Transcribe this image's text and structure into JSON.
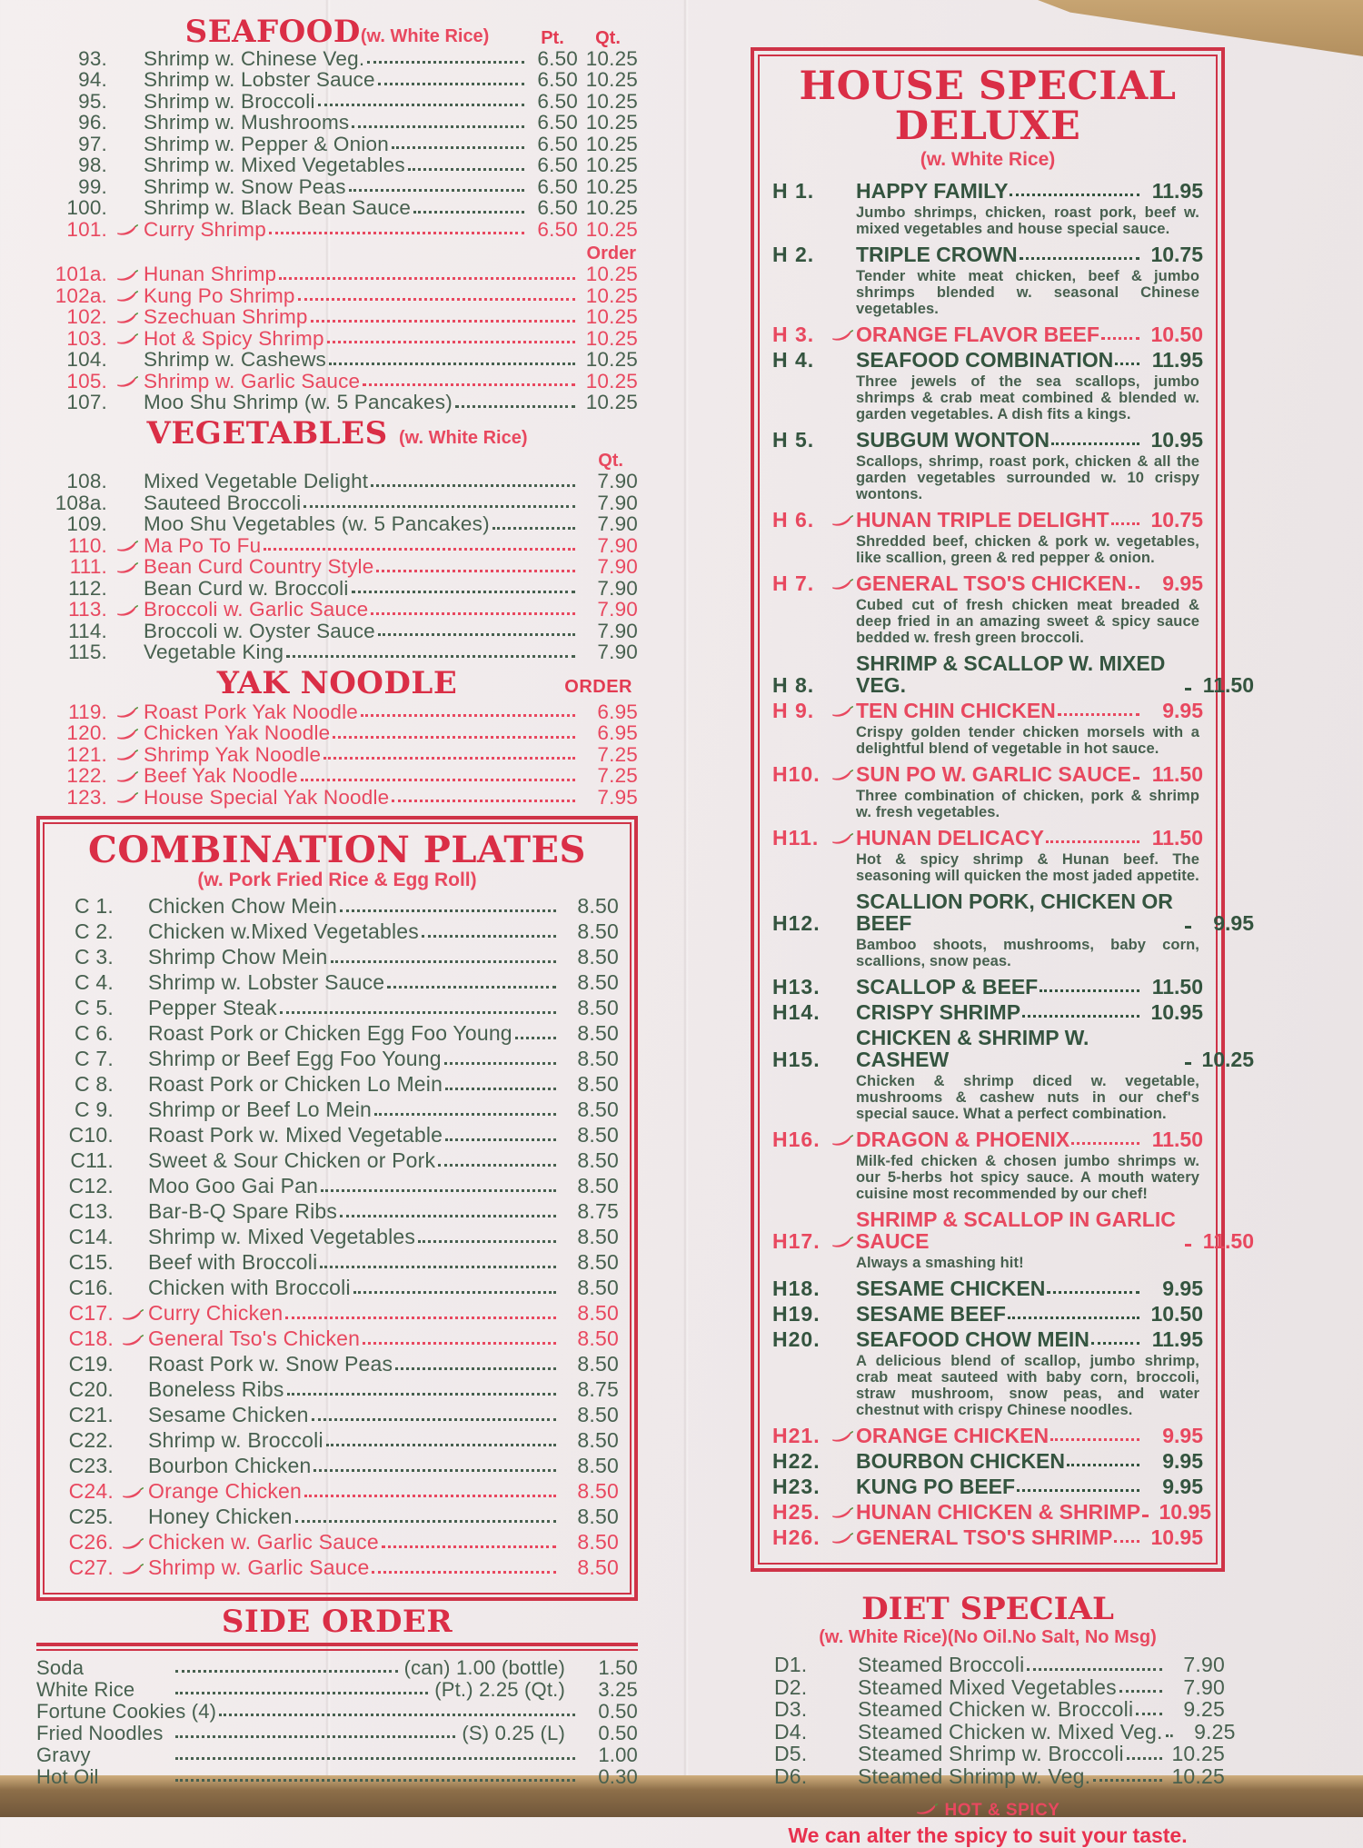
{
  "colors": {
    "paper": "#f1ebec",
    "item_green": "#47604f",
    "item_red": "#e8485f",
    "header_red": "#da2e46",
    "border_red": "#cf3347",
    "wood": "#b3905f"
  },
  "left": {
    "seafood": {
      "title": "SEAFOOD",
      "note": "(w. White Rice)",
      "pt_label": "Pt.",
      "qt_label": "Qt.",
      "order_label": "Order",
      "items": [
        {
          "num": "93.",
          "name": "Shrimp w. Chinese Veg.",
          "pt": "6.50",
          "qt": "10.25",
          "red": false,
          "spicy": false
        },
        {
          "num": "94.",
          "name": "Shrimp w. Lobster Sauce",
          "pt": "6.50",
          "qt": "10.25",
          "red": false,
          "spicy": false
        },
        {
          "num": "95.",
          "name": "Shrimp w. Broccoli",
          "pt": "6.50",
          "qt": "10.25",
          "red": false,
          "spicy": false
        },
        {
          "num": "96.",
          "name": "Shrimp w. Mushrooms",
          "pt": "6.50",
          "qt": "10.25",
          "red": false,
          "spicy": false
        },
        {
          "num": "97.",
          "name": "Shrimp w. Pepper & Onion",
          "pt": "6.50",
          "qt": "10.25",
          "red": false,
          "spicy": false
        },
        {
          "num": "98.",
          "name": "Shrimp w. Mixed Vegetables",
          "pt": "6.50",
          "qt": "10.25",
          "red": false,
          "spicy": false
        },
        {
          "num": "99.",
          "name": "Shrimp w. Snow Peas",
          "pt": "6.50",
          "qt": "10.25",
          "red": false,
          "spicy": false
        },
        {
          "num": "100.",
          "name": "Shrimp w. Black Bean Sauce",
          "pt": "6.50",
          "qt": "10.25",
          "red": false,
          "spicy": false
        },
        {
          "num": "101.",
          "name": "Curry Shrimp",
          "pt": "6.50",
          "qt": "10.25",
          "red": true,
          "spicy": true
        }
      ],
      "items2": [
        {
          "num": "101a.",
          "name": "Hunan Shrimp",
          "price": "10.25",
          "red": true,
          "spicy": true
        },
        {
          "num": "102a.",
          "name": "Kung Po Shrimp",
          "price": "10.25",
          "red": true,
          "spicy": true
        },
        {
          "num": "102.",
          "name": "Szechuan Shrimp",
          "price": "10.25",
          "red": true,
          "spicy": true
        },
        {
          "num": "103.",
          "name": "Hot & Spicy Shrimp",
          "price": "10.25",
          "red": true,
          "spicy": true
        },
        {
          "num": "104.",
          "name": "Shrimp w. Cashews",
          "price": "10.25",
          "red": false,
          "spicy": false
        },
        {
          "num": "105.",
          "name": "Shrimp w. Garlic Sauce",
          "price": "10.25",
          "red": true,
          "spicy": true
        },
        {
          "num": "107.",
          "name": "Moo Shu Shrimp (w. 5 Pancakes)",
          "price": "10.25",
          "red": false,
          "spicy": false
        }
      ]
    },
    "vegetables": {
      "title": "VEGETABLES",
      "note": "(w. White Rice)",
      "qt_label": "Qt.",
      "items": [
        {
          "num": "108.",
          "name": "Mixed Vegetable Delight",
          "price": "7.90",
          "red": false,
          "spicy": false
        },
        {
          "num": "108a.",
          "name": "Sauteed Broccoli",
          "price": "7.90",
          "red": false,
          "spicy": false
        },
        {
          "num": "109.",
          "name": "Moo Shu Vegetables (w. 5 Pancakes)",
          "price": "7.90",
          "red": false,
          "spicy": false
        },
        {
          "num": "110.",
          "name": "Ma Po To Fu",
          "price": "7.90",
          "red": true,
          "spicy": true
        },
        {
          "num": "111.",
          "name": "Bean Curd Country Style",
          "price": "7.90",
          "red": true,
          "spicy": true
        },
        {
          "num": "112.",
          "name": "Bean Curd w. Broccoli",
          "price": "7.90",
          "red": false,
          "spicy": false
        },
        {
          "num": "113.",
          "name": "Broccoli w. Garlic Sauce",
          "price": "7.90",
          "red": true,
          "spicy": true
        },
        {
          "num": "114.",
          "name": "Broccoli w. Oyster Sauce",
          "price": "7.90",
          "red": false,
          "spicy": false
        },
        {
          "num": "115.",
          "name": "Vegetable King",
          "price": "7.90",
          "red": false,
          "spicy": false
        }
      ]
    },
    "yak": {
      "title": "YAK NOODLE",
      "order_label": "ORDER",
      "items": [
        {
          "num": "119.",
          "name": "Roast Pork Yak Noodle",
          "price": "6.95",
          "red": true,
          "spicy": true
        },
        {
          "num": "120.",
          "name": "Chicken Yak Noodle",
          "price": "6.95",
          "red": true,
          "spicy": true
        },
        {
          "num": "121.",
          "name": "Shrimp Yak Noodle",
          "price": "7.25",
          "red": true,
          "spicy": true
        },
        {
          "num": "122.",
          "name": "Beef Yak Noodle",
          "price": "7.25",
          "red": true,
          "spicy": true
        },
        {
          "num": "123.",
          "name": "House Special Yak Noodle",
          "price": "7.95",
          "red": true,
          "spicy": true
        }
      ]
    },
    "combo": {
      "title": "COMBINATION PLATES",
      "note": "(w. Pork Fried Rice & Egg Roll)",
      "items": [
        {
          "num": "C 1.",
          "name": "Chicken Chow Mein",
          "price": "8.50",
          "red": false,
          "spicy": false
        },
        {
          "num": "C 2.",
          "name": "Chicken w.Mixed Vegetables",
          "price": "8.50",
          "red": false,
          "spicy": false
        },
        {
          "num": "C 3.",
          "name": "Shrimp Chow Mein",
          "price": "8.50",
          "red": false,
          "spicy": false
        },
        {
          "num": "C 4.",
          "name": "Shrimp w. Lobster Sauce",
          "price": "8.50",
          "red": false,
          "spicy": false
        },
        {
          "num": "C 5.",
          "name": "Pepper Steak",
          "price": "8.50",
          "red": false,
          "spicy": false
        },
        {
          "num": "C 6.",
          "name": "Roast Pork or Chicken Egg Foo Young",
          "price": "8.50",
          "red": false,
          "spicy": false
        },
        {
          "num": "C 7.",
          "name": "Shrimp or Beef Egg Foo Young",
          "price": "8.50",
          "red": false,
          "spicy": false
        },
        {
          "num": "C 8.",
          "name": "Roast Pork or Chicken Lo Mein",
          "price": "8.50",
          "red": false,
          "spicy": false
        },
        {
          "num": "C 9.",
          "name": "Shrimp or Beef Lo Mein",
          "price": "8.50",
          "red": false,
          "spicy": false
        },
        {
          "num": "C10.",
          "name": "Roast Pork w. Mixed Vegetable",
          "price": "8.50",
          "red": false,
          "spicy": false
        },
        {
          "num": "C11.",
          "name": "Sweet & Sour Chicken or Pork",
          "price": "8.50",
          "red": false,
          "spicy": false
        },
        {
          "num": "C12.",
          "name": "Moo Goo Gai Pan",
          "price": "8.50",
          "red": false,
          "spicy": false
        },
        {
          "num": "C13.",
          "name": "Bar-B-Q Spare Ribs",
          "price": "8.75",
          "red": false,
          "spicy": false
        },
        {
          "num": "C14.",
          "name": "Shrimp w. Mixed Vegetables",
          "price": "8.50",
          "red": false,
          "spicy": false
        },
        {
          "num": "C15.",
          "name": "Beef with Broccoli",
          "price": "8.50",
          "red": false,
          "spicy": false
        },
        {
          "num": "C16.",
          "name": "Chicken with Broccoli",
          "price": "8.50",
          "red": false,
          "spicy": false
        },
        {
          "num": "C17.",
          "name": "Curry Chicken",
          "price": "8.50",
          "red": true,
          "spicy": true
        },
        {
          "num": "C18.",
          "name": "General Tso's Chicken",
          "price": "8.50",
          "red": true,
          "spicy": true
        },
        {
          "num": "C19.",
          "name": "Roast Pork w. Snow Peas",
          "price": "8.50",
          "red": false,
          "spicy": false
        },
        {
          "num": "C20.",
          "name": "Boneless Ribs",
          "price": "8.75",
          "red": false,
          "spicy": false
        },
        {
          "num": "C21.",
          "name": "Sesame Chicken",
          "price": "8.50",
          "red": false,
          "spicy": false
        },
        {
          "num": "C22.",
          "name": "Shrimp w. Broccoli",
          "price": "8.50",
          "red": false,
          "spicy": false
        },
        {
          "num": "C23.",
          "name": "Bourbon Chicken",
          "price": "8.50",
          "red": false,
          "spicy": false
        },
        {
          "num": "C24.",
          "name": "Orange Chicken",
          "price": "8.50",
          "red": true,
          "spicy": true
        },
        {
          "num": "C25.",
          "name": "Honey Chicken",
          "price": "8.50",
          "red": false,
          "spicy": false
        },
        {
          "num": "C26.",
          "name": "Chicken w. Garlic Sauce",
          "price": "8.50",
          "red": true,
          "spicy": true
        },
        {
          "num": "C27.",
          "name": "Shrimp w. Garlic Sauce",
          "price": "8.50",
          "red": true,
          "spicy": true
        }
      ]
    },
    "side": {
      "title": "SIDE ORDER",
      "items": [
        {
          "name": "Soda",
          "mid": "(can) 1.00  (bottle)",
          "price": "1.50"
        },
        {
          "name": "White Rice",
          "mid": "(Pt.) 2.25  (Qt.)",
          "price": "3.25"
        },
        {
          "name": "Fortune Cookies (4)",
          "mid": "",
          "price": "0.50"
        },
        {
          "name": "Fried Noodles",
          "mid": "(S) 0.25  (L)",
          "price": "0.50"
        },
        {
          "name": "Gravy",
          "mid": "",
          "price": "1.00"
        },
        {
          "name": "Hot Oil",
          "mid": "",
          "price": "0.30"
        }
      ]
    }
  },
  "right": {
    "house": {
      "title": "HOUSE SPECIAL DELUXE",
      "note": "(w. White Rice)",
      "items": [
        {
          "num": "H 1.",
          "name": "HAPPY FAMILY",
          "price": "11.95",
          "red": false,
          "spicy": false,
          "desc": "Jumbo shrimps, chicken, roast pork, beef w. mixed vegetables and house special sauce."
        },
        {
          "num": "H 2.",
          "name": "TRIPLE CROWN",
          "price": "10.75",
          "red": false,
          "spicy": false,
          "desc": "Tender white meat chicken, beef & jumbo shrimps blended w. seasonal Chinese vegetables."
        },
        {
          "num": "H 3.",
          "name": "ORANGE FLAVOR BEEF",
          "price": "10.50",
          "red": true,
          "spicy": true,
          "desc": ""
        },
        {
          "num": "H 4.",
          "name": "SEAFOOD COMBINATION",
          "price": "11.95",
          "red": false,
          "spicy": false,
          "desc": "Three jewels of the sea scallops, jumbo shrimps & crab meat combined & blended w. garden vegetables. A dish fits a kings."
        },
        {
          "num": "H 5.",
          "name": "SUBGUM WONTON",
          "price": "10.95",
          "red": false,
          "spicy": false,
          "desc": "Scallops, shrimp, roast pork, chicken & all the garden vegetables surrounded w. 10 crispy wontons."
        },
        {
          "num": "H 6.",
          "name": "HUNAN TRIPLE DELIGHT",
          "price": "10.75",
          "red": true,
          "spicy": true,
          "desc": "Shredded beef, chicken & pork w. vegetables, like scallion, green & red pepper & onion."
        },
        {
          "num": "H 7.",
          "name": "GENERAL TSO'S CHICKEN",
          "price": "9.95",
          "red": true,
          "spicy": true,
          "desc": "Cubed cut of fresh chicken meat breaded & deep fried in an amazing sweet & spicy sauce bedded w. fresh green broccoli."
        },
        {
          "num": "H 8.",
          "name": "SHRIMP & SCALLOP W. MIXED VEG.",
          "price": "11.50",
          "red": false,
          "spicy": false,
          "desc": ""
        },
        {
          "num": "H 9.",
          "name": "TEN CHIN CHICKEN",
          "price": "9.95",
          "red": true,
          "spicy": true,
          "desc": "Crispy golden tender chicken morsels with a delightful blend of vegetable in hot sauce."
        },
        {
          "num": "H10.",
          "name": "SUN PO W. GARLIC SAUCE",
          "price": "11.50",
          "red": true,
          "spicy": true,
          "desc": "Three combination of chicken, pork & shrimp w. fresh vegetables."
        },
        {
          "num": "H11.",
          "name": "HUNAN DELICACY",
          "price": "11.50",
          "red": true,
          "spicy": true,
          "desc": "Hot & spicy shrimp & Hunan beef. The seasoning will quicken the most jaded appetite."
        },
        {
          "num": "H12.",
          "name": "SCALLION PORK, CHICKEN OR BEEF",
          "price": "9.95",
          "red": false,
          "spicy": false,
          "desc": "Bamboo shoots, mushrooms, baby corn, scallions, snow peas."
        },
        {
          "num": "H13.",
          "name": "SCALLOP & BEEF",
          "price": "11.50",
          "red": false,
          "spicy": false,
          "desc": ""
        },
        {
          "num": "H14.",
          "name": "CRISPY SHRIMP",
          "price": "10.95",
          "red": false,
          "spicy": false,
          "desc": ""
        },
        {
          "num": "H15.",
          "name": "CHICKEN & SHRIMP W. CASHEW",
          "price": "10.25",
          "red": false,
          "spicy": false,
          "desc": "Chicken & shrimp diced w. vegetable, mushrooms & cashew nuts in our chef's special sauce. What a perfect combination."
        },
        {
          "num": "H16.",
          "name": "DRAGON & PHOENIX",
          "price": "11.50",
          "red": true,
          "spicy": true,
          "desc": "Milk-fed chicken & chosen jumbo shrimps w. our 5-herbs hot spicy sauce. A mouth watery cuisine most recommended by our chef!"
        },
        {
          "num": "H17.",
          "name": "SHRIMP & SCALLOP IN GARLIC SAUCE",
          "price": "11.50",
          "red": true,
          "spicy": true,
          "desc": "Always a smashing hit!"
        },
        {
          "num": "H18.",
          "name": "SESAME CHICKEN",
          "price": "9.95",
          "red": false,
          "spicy": false,
          "desc": ""
        },
        {
          "num": "H19.",
          "name": "SESAME BEEF",
          "price": "10.50",
          "red": false,
          "spicy": false,
          "desc": ""
        },
        {
          "num": "H20.",
          "name": "SEAFOOD CHOW MEIN",
          "price": "11.95",
          "red": false,
          "spicy": false,
          "desc": "A delicious blend of scallop, jumbo shrimp, crab meat sauteed with baby corn, broccoli, straw mushroom, snow peas, and water chestnut with crispy Chinese noodles."
        },
        {
          "num": "H21.",
          "name": "ORANGE CHICKEN",
          "price": "9.95",
          "red": true,
          "spicy": true,
          "desc": ""
        },
        {
          "num": "H22.",
          "name": "BOURBON CHICKEN",
          "price": "9.95",
          "red": false,
          "spicy": false,
          "desc": ""
        },
        {
          "num": "H23.",
          "name": "KUNG PO BEEF",
          "price": "9.95",
          "red": false,
          "spicy": false,
          "desc": ""
        },
        {
          "num": "H25.",
          "name": "HUNAN CHICKEN & SHRIMP",
          "price": "10.95",
          "red": true,
          "spicy": true,
          "desc": ""
        },
        {
          "num": "H26.",
          "name": "GENERAL TSO'S SHRIMP",
          "price": "10.95",
          "red": true,
          "spicy": true,
          "desc": ""
        }
      ]
    },
    "diet": {
      "title": "DIET SPECIAL",
      "note": "(w. White Rice)(No Oil.No Salt, No Msg)",
      "items": [
        {
          "num": "D1.",
          "name": "Steamed Broccoli",
          "price": "7.90",
          "red": false,
          "spicy": false
        },
        {
          "num": "D2.",
          "name": "Steamed Mixed Vegetables",
          "price": "7.90",
          "red": false,
          "spicy": false
        },
        {
          "num": "D3.",
          "name": "Steamed Chicken w. Broccoli",
          "price": "9.25",
          "red": false,
          "spicy": false
        },
        {
          "num": "D4.",
          "name": "Steamed Chicken w. Mixed Veg.",
          "price": "9.25",
          "red": false,
          "spicy": false
        },
        {
          "num": "D5.",
          "name": "Steamed Shrimp w. Broccoli",
          "price": "10.25",
          "red": false,
          "spicy": false
        },
        {
          "num": "D6.",
          "name": "Steamed Shrimp w. Veg.",
          "price": "10.25",
          "red": false,
          "spicy": false
        }
      ]
    },
    "footer": {
      "hot_label": "HOT & SPICY",
      "line2": "We can alter the spicy to suit your taste."
    }
  }
}
